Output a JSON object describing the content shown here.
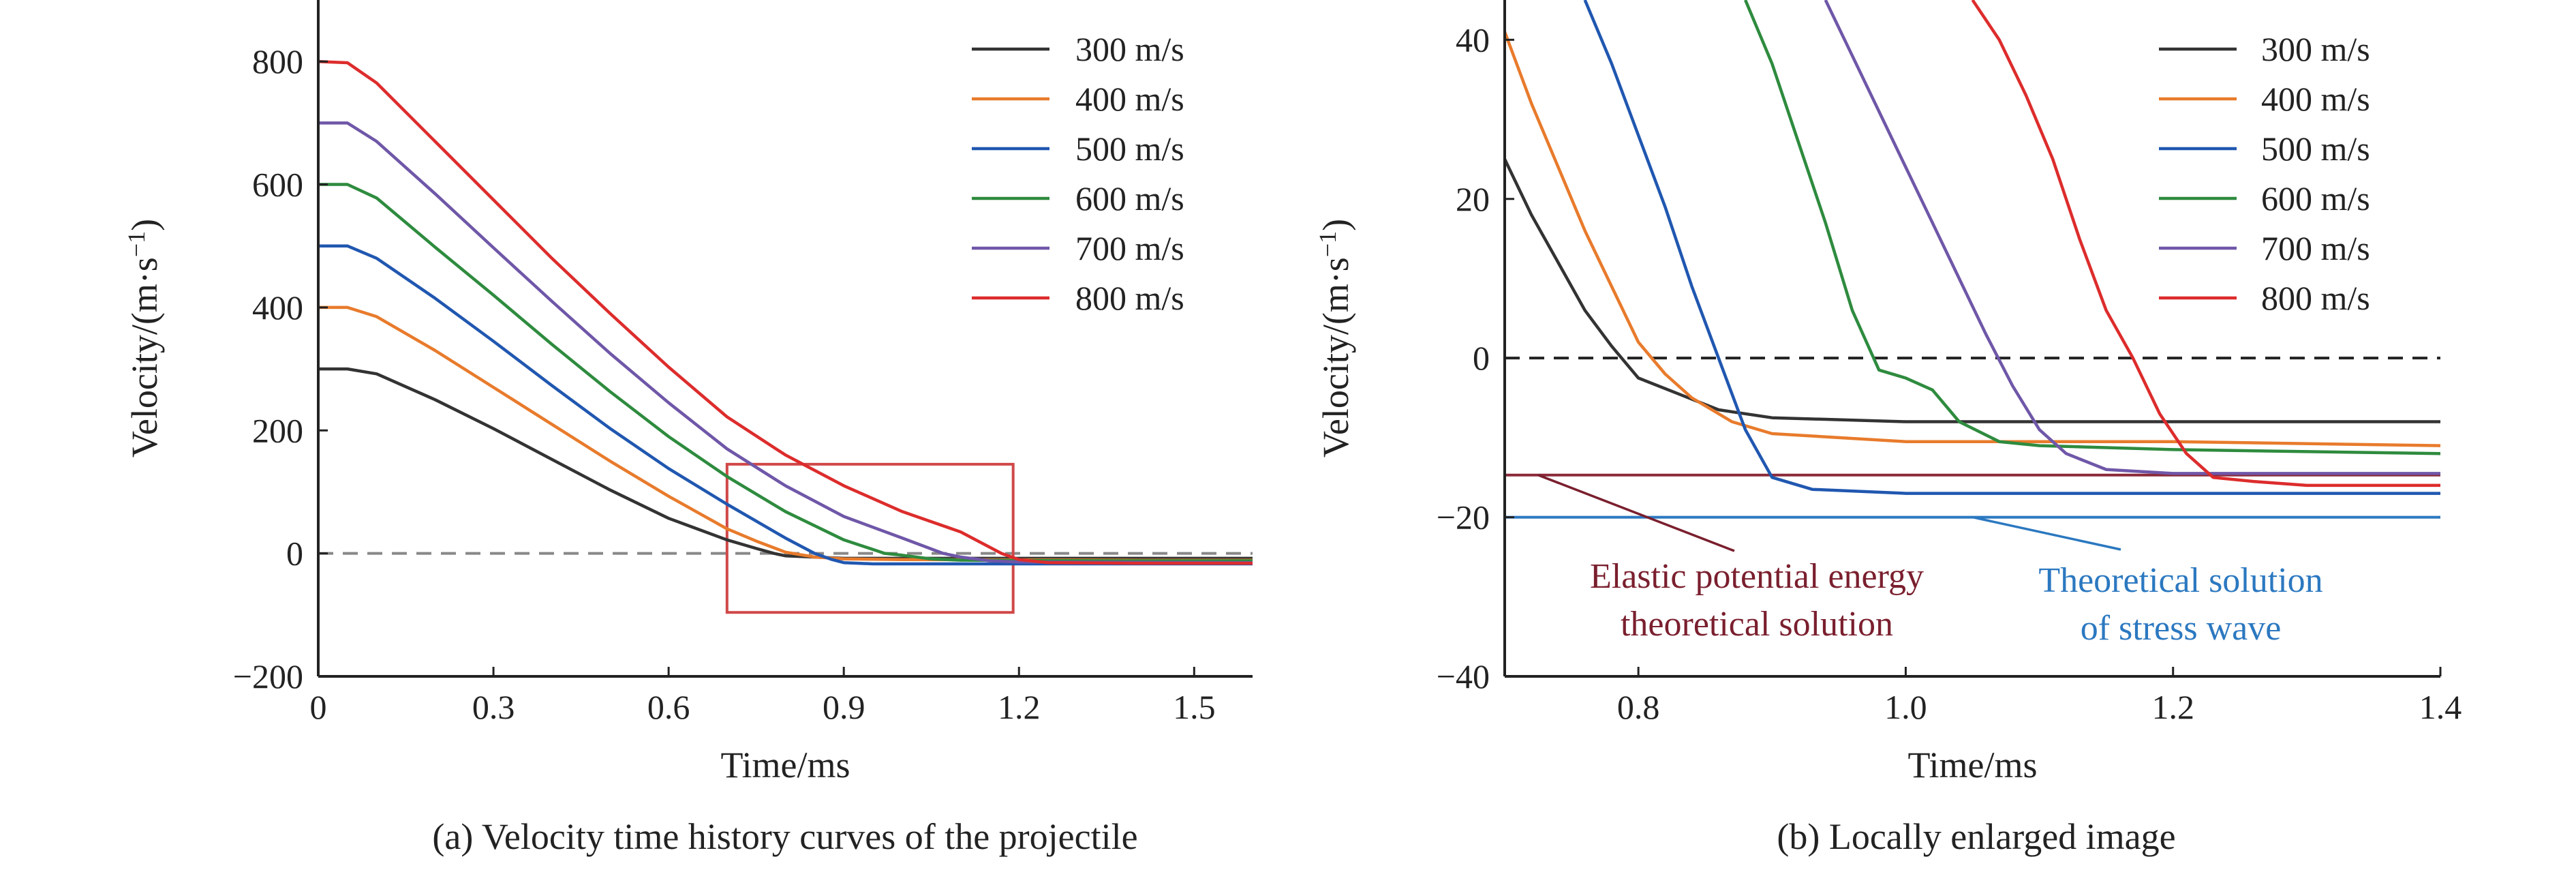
{
  "chart_data": [
    {
      "type": "line",
      "caption": "(a) Velocity time history curves of the projectile",
      "xlabel": "Time/ms",
      "ylabel": "Velocity/(m·s",
      "ylabel_sup": "−1",
      "ylabel_close": ")",
      "xlim": [
        0,
        1.6
      ],
      "ylim": [
        -200,
        900
      ],
      "xticks": [
        0,
        0.3,
        0.6,
        0.9,
        1.2,
        1.5
      ],
      "xtick_labels": [
        "0",
        "0.3",
        "0.6",
        "0.9",
        "1.2",
        "1.5"
      ],
      "yticks": [
        -200,
        0,
        200,
        400,
        600,
        800
      ],
      "ytick_labels": [
        "−200",
        "0",
        "200",
        "400",
        "600",
        "800"
      ],
      "legend_position": "top-right",
      "reference_lines": [
        {
          "y": 0,
          "style": "dashed",
          "color": "#888888"
        }
      ],
      "highlight_box": {
        "x": [
          0.7,
          1.19
        ],
        "y": [
          -96,
          145
        ],
        "color": "#d04848"
      },
      "series": [
        {
          "name": "300 m/s",
          "color": "#333333",
          "points": [
            [
              0,
              300
            ],
            [
              0.05,
              300
            ],
            [
              0.1,
              292
            ],
            [
              0.2,
              250
            ],
            [
              0.3,
              203
            ],
            [
              0.4,
              153
            ],
            [
              0.5,
              103
            ],
            [
              0.6,
              57
            ],
            [
              0.7,
              22
            ],
            [
              0.75,
              8
            ],
            [
              0.78,
              0
            ],
            [
              0.8,
              -4
            ],
            [
              0.9,
              -8
            ],
            [
              1.0,
              -8
            ],
            [
              1.2,
              -8
            ],
            [
              1.4,
              -8
            ],
            [
              1.6,
              -8
            ]
          ]
        },
        {
          "name": "400 m/s",
          "color": "#e87b2c",
          "points": [
            [
              0,
              400
            ],
            [
              0.05,
              400
            ],
            [
              0.1,
              385
            ],
            [
              0.2,
              330
            ],
            [
              0.3,
              270
            ],
            [
              0.4,
              210
            ],
            [
              0.5,
              150
            ],
            [
              0.6,
              93
            ],
            [
              0.7,
              40
            ],
            [
              0.75,
              20
            ],
            [
              0.8,
              2
            ],
            [
              0.85,
              -6
            ],
            [
              0.9,
              -9
            ],
            [
              1.0,
              -10
            ],
            [
              1.2,
              -10.5
            ],
            [
              1.4,
              -11
            ],
            [
              1.6,
              -11
            ]
          ]
        },
        {
          "name": "500 m/s",
          "color": "#2057b0",
          "points": [
            [
              0,
              500
            ],
            [
              0.05,
              500
            ],
            [
              0.1,
              480
            ],
            [
              0.2,
              415
            ],
            [
              0.3,
              345
            ],
            [
              0.4,
              273
            ],
            [
              0.5,
              203
            ],
            [
              0.6,
              138
            ],
            [
              0.7,
              80
            ],
            [
              0.8,
              25
            ],
            [
              0.85,
              0
            ],
            [
              0.88,
              -10
            ],
            [
              0.9,
              -15
            ],
            [
              0.95,
              -17
            ],
            [
              1.0,
              -17
            ],
            [
              1.2,
              -17
            ],
            [
              1.4,
              -17
            ],
            [
              1.6,
              -17
            ]
          ]
        },
        {
          "name": "600 m/s",
          "color": "#2e8b3e",
          "points": [
            [
              0,
              600
            ],
            [
              0.05,
              600
            ],
            [
              0.1,
              578
            ],
            [
              0.2,
              498
            ],
            [
              0.3,
              420
            ],
            [
              0.4,
              340
            ],
            [
              0.5,
              263
            ],
            [
              0.6,
              190
            ],
            [
              0.7,
              125
            ],
            [
              0.8,
              68
            ],
            [
              0.9,
              22
            ],
            [
              0.97,
              0
            ],
            [
              1.0,
              -3
            ],
            [
              1.05,
              -9
            ],
            [
              1.1,
              -11
            ],
            [
              1.2,
              -11.5
            ],
            [
              1.4,
              -12
            ],
            [
              1.6,
              -12
            ]
          ]
        },
        {
          "name": "700 m/s",
          "color": "#6f57a8",
          "points": [
            [
              0,
              700
            ],
            [
              0.05,
              700
            ],
            [
              0.1,
              670
            ],
            [
              0.2,
              585
            ],
            [
              0.3,
              497
            ],
            [
              0.4,
              410
            ],
            [
              0.5,
              325
            ],
            [
              0.6,
              245
            ],
            [
              0.7,
              170
            ],
            [
              0.8,
              110
            ],
            [
              0.9,
              60
            ],
            [
              1.0,
              25
            ],
            [
              1.07,
              0
            ],
            [
              1.1,
              -6
            ],
            [
              1.15,
              -12
            ],
            [
              1.2,
              -14
            ],
            [
              1.4,
              -14.5
            ],
            [
              1.6,
              -15
            ]
          ]
        },
        {
          "name": "800 m/s",
          "color": "#dd2c2c",
          "points": [
            [
              0,
              800
            ],
            [
              0.05,
              798
            ],
            [
              0.1,
              765
            ],
            [
              0.2,
              670
            ],
            [
              0.3,
              575
            ],
            [
              0.4,
              480
            ],
            [
              0.5,
              390
            ],
            [
              0.6,
              303
            ],
            [
              0.7,
              222
            ],
            [
              0.8,
              160
            ],
            [
              0.9,
              110
            ],
            [
              1.0,
              68
            ],
            [
              1.1,
              35
            ],
            [
              1.17,
              0
            ],
            [
              1.2,
              -10
            ],
            [
              1.25,
              -15
            ],
            [
              1.4,
              -16
            ],
            [
              1.6,
              -16
            ]
          ]
        }
      ]
    },
    {
      "type": "line",
      "caption": "(b) Locally enlarged image",
      "xlabel": "Time/ms",
      "ylabel": "Velocity/(m·s",
      "ylabel_sup": "−1",
      "ylabel_close": ")",
      "xlim": [
        0.7,
        1.4
      ],
      "ylim": [
        -40,
        45
      ],
      "xticks": [
        0.8,
        1.0,
        1.2,
        1.4
      ],
      "xtick_labels": [
        "0.8",
        "1.0",
        "1.2",
        "1.4"
      ],
      "yticks": [
        -40,
        -20,
        0,
        20,
        40
      ],
      "ytick_labels": [
        "−40",
        "−20",
        "0",
        "20",
        "40"
      ],
      "legend_position": "top-right",
      "reference_lines": [
        {
          "y": 0,
          "style": "dashed",
          "color": "#222222"
        },
        {
          "y": -14.7,
          "style": "solid",
          "color": "#8b2a3a"
        },
        {
          "y": -20,
          "style": "solid",
          "color": "#2b78c0"
        }
      ],
      "annotations": [
        {
          "lines": [
            "Elastic potential energy",
            "theoretical solution"
          ],
          "color": "#7a1f2e",
          "target_x": 0.725,
          "target_y": -14.7
        },
        {
          "lines": [
            "Theoretical solution",
            "of stress wave"
          ],
          "color": "#2b78c0",
          "target_x": 1.05,
          "target_y": -20
        }
      ],
      "series": [
        {
          "name": "300 m/s",
          "color": "#333333",
          "points": [
            [
              0.7,
              25
            ],
            [
              0.72,
              18
            ],
            [
              0.74,
              12
            ],
            [
              0.76,
              6
            ],
            [
              0.78,
              1.5
            ],
            [
              0.8,
              -2.5
            ],
            [
              0.83,
              -4.5
            ],
            [
              0.86,
              -6.5
            ],
            [
              0.9,
              -7.5
            ],
            [
              1.0,
              -8
            ],
            [
              1.2,
              -8
            ],
            [
              1.4,
              -8
            ]
          ]
        },
        {
          "name": "400 m/s",
          "color": "#e87b2c",
          "points": [
            [
              0.7,
              41
            ],
            [
              0.72,
              32
            ],
            [
              0.74,
              24
            ],
            [
              0.76,
              16
            ],
            [
              0.78,
              9
            ],
            [
              0.8,
              2
            ],
            [
              0.82,
              -2
            ],
            [
              0.84,
              -5
            ],
            [
              0.87,
              -8
            ],
            [
              0.9,
              -9.5
            ],
            [
              1.0,
              -10.5
            ],
            [
              1.2,
              -10.5
            ],
            [
              1.4,
              -11
            ]
          ]
        },
        {
          "name": "500 m/s",
          "color": "#2057b0",
          "points": [
            [
              0.76,
              45
            ],
            [
              0.78,
              37
            ],
            [
              0.8,
              28
            ],
            [
              0.82,
              19
            ],
            [
              0.84,
              9
            ],
            [
              0.86,
              0
            ],
            [
              0.88,
              -9
            ],
            [
              0.9,
              -15
            ],
            [
              0.93,
              -16.5
            ],
            [
              1.0,
              -17
            ],
            [
              1.2,
              -17
            ],
            [
              1.4,
              -17
            ]
          ]
        },
        {
          "name": "600 m/s",
          "color": "#2e8b3e",
          "points": [
            [
              0.88,
              45
            ],
            [
              0.9,
              37
            ],
            [
              0.92,
              27
            ],
            [
              0.94,
              17
            ],
            [
              0.96,
              6
            ],
            [
              0.98,
              -1.5
            ],
            [
              1.0,
              -2.5
            ],
            [
              1.02,
              -4
            ],
            [
              1.04,
              -8
            ],
            [
              1.07,
              -10.5
            ],
            [
              1.1,
              -11
            ],
            [
              1.2,
              -11.5
            ],
            [
              1.4,
              -12
            ]
          ]
        },
        {
          "name": "700 m/s",
          "color": "#6f57a8",
          "points": [
            [
              0.94,
              45
            ],
            [
              0.96,
              38
            ],
            [
              0.98,
              31
            ],
            [
              1.0,
              24
            ],
            [
              1.02,
              17
            ],
            [
              1.04,
              10
            ],
            [
              1.06,
              3
            ],
            [
              1.08,
              -3.5
            ],
            [
              1.1,
              -9
            ],
            [
              1.12,
              -12
            ],
            [
              1.15,
              -14
            ],
            [
              1.2,
              -14.5
            ],
            [
              1.4,
              -14.5
            ]
          ]
        },
        {
          "name": "800 m/s",
          "color": "#dd2c2c",
          "points": [
            [
              1.05,
              45
            ],
            [
              1.07,
              40
            ],
            [
              1.09,
              33
            ],
            [
              1.11,
              25
            ],
            [
              1.13,
              15
            ],
            [
              1.15,
              6
            ],
            [
              1.17,
              0
            ],
            [
              1.19,
              -7
            ],
            [
              1.21,
              -12
            ],
            [
              1.23,
              -15
            ],
            [
              1.26,
              -15.5
            ],
            [
              1.3,
              -16
            ],
            [
              1.4,
              -16
            ]
          ]
        }
      ]
    }
  ]
}
